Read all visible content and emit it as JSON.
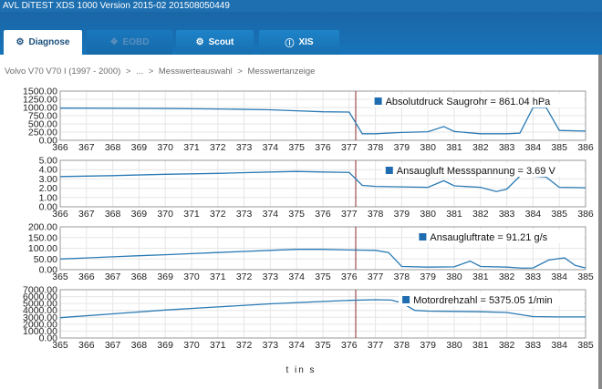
{
  "window": {
    "title": "AVL DiTEST XDS 1000 Version 2015-02  201508050449"
  },
  "tabs": [
    {
      "label": "Diagnose",
      "icon": "car-diagnose-icon",
      "active": true
    },
    {
      "label": "EOBD",
      "icon": "eobd-icon",
      "active": false,
      "disabled": true
    },
    {
      "label": "Scout",
      "icon": "scout-icon",
      "active": false
    },
    {
      "label": "XIS",
      "icon": "info-icon",
      "active": false
    }
  ],
  "breadcrumb": [
    "Volvo V70 V70 I (1997 - 2000)",
    ">",
    "...",
    ">",
    "Messwerteauswahl",
    ">",
    "Messwertanzeige"
  ],
  "x_axis_label": "t in s",
  "colors": {
    "line": "#2a7ab4",
    "marker": "#8b2a2a",
    "grid": "#e6e6e6",
    "legend": "#1f6cb0"
  },
  "chart_data": [
    {
      "type": "line",
      "legend": "Absolutdruck Saugrohr = 861.04 hPa",
      "yticks": [
        "0.00",
        "250.00",
        "500.00",
        "750.00",
        "1000.00",
        "1250.00",
        "1500.00"
      ],
      "ylim": [
        0,
        1500
      ],
      "xticks": [
        "366",
        "367",
        "368",
        "369",
        "370",
        "371",
        "372",
        "373",
        "374",
        "375",
        "376",
        "377",
        "378",
        "379",
        "380",
        "381",
        "382",
        "383",
        "384",
        "385",
        "386"
      ],
      "xlim": [
        366,
        386
      ],
      "x": [
        366,
        368,
        370,
        372,
        374,
        375,
        376,
        377,
        377.5,
        378,
        379,
        380,
        380.6,
        381,
        382,
        383,
        383.5,
        384,
        384.5,
        385,
        386
      ],
      "values": [
        980,
        975,
        970,
        955,
        930,
        900,
        870,
        860,
        200,
        200,
        240,
        260,
        420,
        270,
        200,
        200,
        220,
        1000,
        1000,
        300,
        280
      ]
    },
    {
      "type": "line",
      "legend": "Ansaugluft Messspannung = 3.69 V",
      "yticks": [
        "0.00",
        "1.00",
        "2.00",
        "3.00",
        "4.00",
        "5.00"
      ],
      "ylim": [
        0,
        5
      ],
      "xticks": [
        "366",
        "367",
        "368",
        "369",
        "370",
        "371",
        "372",
        "373",
        "374",
        "375",
        "376",
        "377",
        "378",
        "379",
        "380",
        "381",
        "382",
        "383",
        "384",
        "385",
        "386"
      ],
      "xlim": [
        366,
        386
      ],
      "x": [
        366,
        368,
        370,
        372,
        374,
        375,
        376,
        377,
        377.5,
        378,
        379,
        380,
        380.6,
        381,
        382,
        382.6,
        383,
        383.5,
        384,
        384.5,
        385,
        386
      ],
      "values": [
        3.25,
        3.35,
        3.5,
        3.6,
        3.75,
        3.8,
        3.75,
        3.7,
        2.3,
        2.2,
        2.15,
        2.1,
        2.8,
        2.25,
        2.1,
        1.65,
        1.9,
        3.3,
        3.3,
        3.2,
        2.1,
        2.05
      ]
    },
    {
      "type": "line",
      "legend": "Ansaugluftrate = 91.21 g/s",
      "yticks": [
        "0.00",
        "50.00",
        "100.00",
        "150.00",
        "200.00"
      ],
      "ylim": [
        0,
        200
      ],
      "xticks": [
        "365",
        "366",
        "367",
        "368",
        "369",
        "370",
        "371",
        "372",
        "373",
        "374",
        "375",
        "376",
        "377",
        "378",
        "379",
        "380",
        "381",
        "382",
        "383",
        "384",
        "385"
      ],
      "xlim": [
        365,
        385
      ],
      "x": [
        365,
        366,
        367,
        368,
        369,
        370,
        371,
        372,
        373,
        374,
        375,
        376,
        377,
        377.5,
        378,
        379,
        380,
        380.6,
        381,
        382,
        382.6,
        383,
        383.6,
        384.2,
        384.6,
        385
      ],
      "values": [
        50,
        55,
        60,
        65,
        70,
        75,
        80,
        85,
        90,
        95,
        95,
        92,
        90,
        80,
        15,
        12,
        13,
        40,
        15,
        12,
        7,
        8,
        45,
        55,
        20,
        8
      ]
    },
    {
      "type": "line",
      "legend": "Motordrehzahl = 5375.05 1/min",
      "yticks": [
        "0.00",
        "1000.00",
        "2000.00",
        "3000.00",
        "4000.00",
        "5000.00",
        "6000.00",
        "7000.00"
      ],
      "ylim": [
        0,
        7000
      ],
      "xticks": [
        "365",
        "366",
        "367",
        "368",
        "369",
        "370",
        "371",
        "372",
        "373",
        "374",
        "375",
        "376",
        "377",
        "378",
        "379",
        "380",
        "381",
        "382",
        "383",
        "384",
        "385"
      ],
      "xlim": [
        365,
        385
      ],
      "x": [
        365,
        367,
        369,
        371,
        373,
        375,
        376,
        377,
        377.6,
        378,
        378.5,
        379,
        380,
        381,
        382,
        383,
        384,
        385
      ],
      "values": [
        2950,
        3500,
        4050,
        4500,
        4950,
        5300,
        5450,
        5550,
        5500,
        5100,
        4000,
        3900,
        3850,
        3800,
        3700,
        3100,
        3050,
        3050
      ]
    }
  ]
}
